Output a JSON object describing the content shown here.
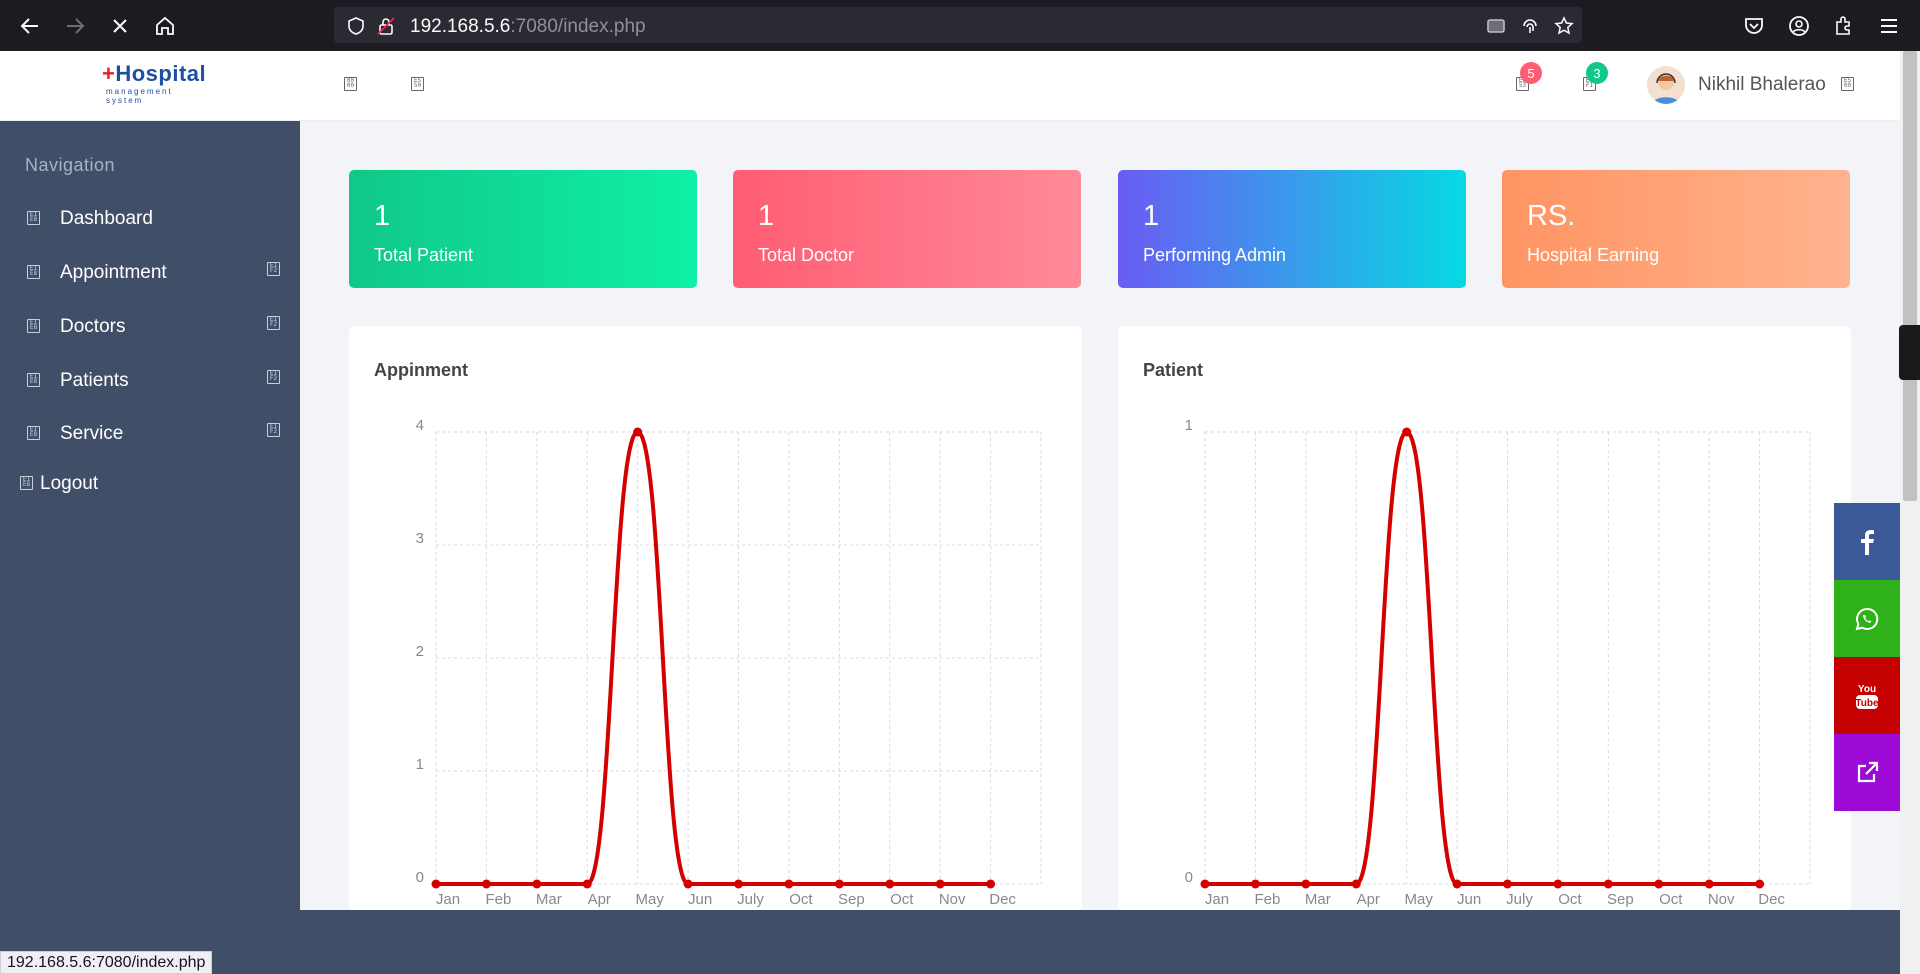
{
  "browser": {
    "url_host": "192.168.5.6",
    "url_rest": ":7080/index.php",
    "status_url": "192.168.5.6:7080/index.php"
  },
  "app": {
    "logo_text": "Hospital",
    "logo_sub": "management system",
    "notifications": {
      "messages_count": "5",
      "alerts_count": "3"
    },
    "user_name": "Nikhil Bhalerao"
  },
  "sidebar": {
    "heading": "Navigation",
    "items": [
      {
        "label": "Dashboard",
        "has_submenu": false
      },
      {
        "label": "Appointment",
        "has_submenu": true
      },
      {
        "label": "Doctors",
        "has_submenu": true
      },
      {
        "label": "Patients",
        "has_submenu": true
      },
      {
        "label": "Service",
        "has_submenu": true
      }
    ],
    "logout": "Logout"
  },
  "stats": [
    {
      "value": "1",
      "label": "Total Patient",
      "gradient": [
        "#10c888",
        "#0ff0a6"
      ]
    },
    {
      "value": "1",
      "label": "Total Doctor",
      "gradient": [
        "#ff5d73",
        "#ff8a99"
      ]
    },
    {
      "value": "1",
      "label": "Performing Admin",
      "gradient": [
        "#6a5cf3",
        "#06dae3"
      ]
    },
    {
      "value": "RS.",
      "label": "Hospital Earning",
      "gradient": [
        "#ff9462",
        "#ffb38e"
      ]
    }
  ],
  "colors": {
    "line": "#d40000",
    "facebook": "#3b5998",
    "whatsapp": "#2fb11a",
    "youtube": "#c40000",
    "share": "#9b0bd5"
  },
  "chart_data": [
    {
      "type": "line",
      "title": "Appinment",
      "categories": [
        "Jan",
        "Feb",
        "Mar",
        "Apr",
        "May",
        "Jun",
        "July",
        "Oct",
        "Sep",
        "Oct",
        "Nov",
        "Dec"
      ],
      "series": [
        {
          "values": [
            0,
            0,
            0,
            0,
            4,
            0,
            0,
            0,
            0,
            0,
            0,
            0
          ]
        }
      ],
      "ylim": [
        0,
        4
      ],
      "yticks": [
        0,
        1,
        2,
        3,
        4
      ],
      "grid": true
    },
    {
      "type": "line",
      "title": "Patient",
      "categories": [
        "Jan",
        "Feb",
        "Mar",
        "Apr",
        "May",
        "Jun",
        "July",
        "Oct",
        "Sep",
        "Oct",
        "Nov",
        "Dec"
      ],
      "series": [
        {
          "values": [
            0,
            0,
            0,
            0,
            1,
            0,
            0,
            0,
            0,
            0,
            0,
            0
          ]
        }
      ],
      "ylim": [
        0,
        1
      ],
      "yticks": [
        0,
        1
      ],
      "grid": true
    }
  ],
  "social": [
    "facebook-icon",
    "whatsapp-icon",
    "youtube-icon",
    "external-link-icon"
  ]
}
